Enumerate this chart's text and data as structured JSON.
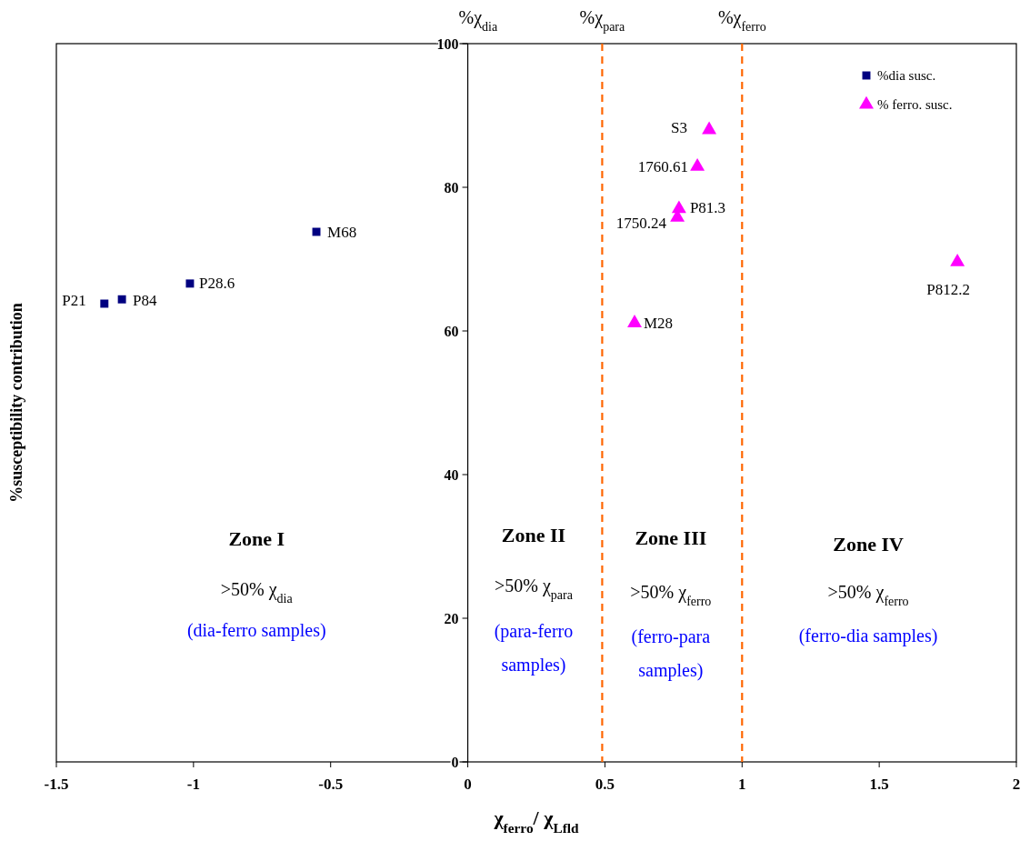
{
  "chart_data": {
    "type": "scatter",
    "xlabel": "χ$_{ferro}$/ χ$_{Lfld}$",
    "ylabel": "%susceptibility contribution",
    "xlim": [
      -1.5,
      2
    ],
    "xticks": [
      -1.5,
      -1,
      -0.5,
      0,
      0.5,
      1,
      1.5,
      2
    ],
    "ylim": [
      0,
      100
    ],
    "yticks": [
      0,
      20,
      40,
      60,
      80,
      100
    ],
    "grid": false,
    "legend": "top right",
    "series": [
      {
        "name": "%dia susc.",
        "color": "#000080",
        "marker": "square",
        "x": [
          -1.325,
          -1.261,
          -1.013,
          -0.552
        ],
        "values": [
          63.8,
          64.4,
          66.6,
          73.8
        ]
      },
      {
        "name": "% ferro. susc.",
        "color": "#ff00ff",
        "marker": "triangle",
        "x": [
          0.88,
          0.837,
          0.77,
          0.764,
          0.608,
          1.785
        ],
        "values": [
          88,
          82.9,
          77,
          75.8,
          61.1,
          69.6
        ]
      }
    ],
    "ref_lines": [
      {
        "axis": "x",
        "value": 0.49,
        "label": "%χ$_{para}$",
        "color": "#ff6600",
        "line_style": "dashed"
      },
      {
        "axis": "x",
        "value": 1,
        "label": "%χ$_{ferro}$",
        "color": "#ff6600",
        "line_style": "dashed"
      }
    ],
    "annotations": [
      "%χ$_{dia}$",
      "Zone I",
      ">50% χ$_{dia}$",
      "(dia-ferro samples)",
      "Zone II",
      ">50% χ$_{para}$",
      "(para-ferro samples)",
      "Zone III",
      ">50% χ$_{ferro}$",
      "(ferro-para samples)",
      "Zone IV",
      ">50% χ$_{ferro}$",
      "(ferro-dia samples)",
      {
        "text": "P21",
        "x": -1.325,
        "y": 63.8
      },
      {
        "text": "P84",
        "x": -1.261,
        "y": 64.4
      },
      {
        "text": "P28.6",
        "x": -1.013,
        "y": 66.6
      },
      {
        "text": "M68",
        "x": -0.552,
        "y": 73.8
      },
      {
        "text": "S3",
        "x": 0.88,
        "y": 88
      },
      {
        "text": "1760.61",
        "x": 0.837,
        "y": 82.9
      },
      {
        "text": "P81.3",
        "x": 0.77,
        "y": 77
      },
      {
        "text": "1750.24",
        "x": 0.764,
        "y": 75.8
      },
      {
        "text": "M28",
        "x": 0.608,
        "y": 61.1
      },
      {
        "text": "P812.2",
        "x": 1.785,
        "y": 69.6
      }
    ]
  }
}
